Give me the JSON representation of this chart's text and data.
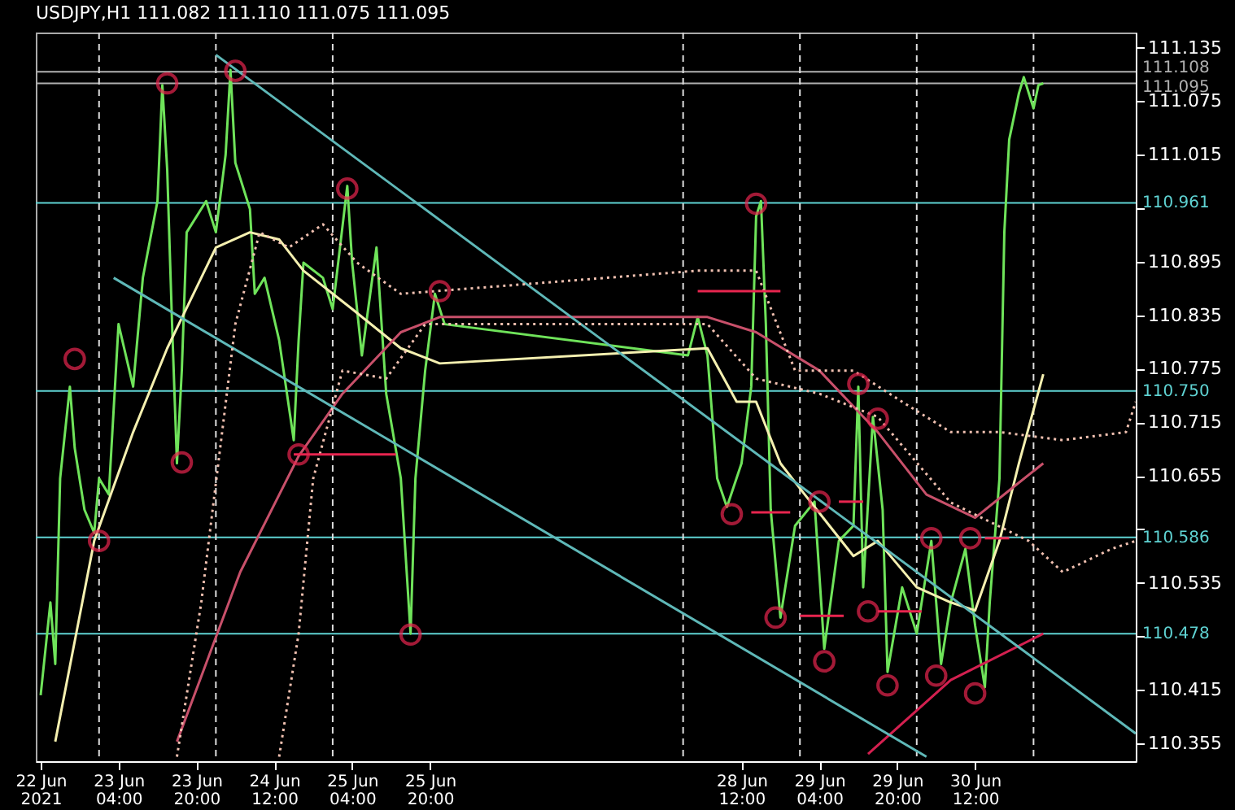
{
  "chart_data": {
    "type": "line",
    "title": "USDJPY,H1  111.082 111.110 111.075 111.095",
    "xlim": [
      "2021-06-22T11:00",
      "2021-07-01T21:00"
    ],
    "ylim": [
      110.335,
      111.152
    ],
    "xticks": [
      {
        "value": "2021-06-22T12:00",
        "label": "22 Jun 2021"
      },
      {
        "value": "2021-06-23T04:00",
        "label": "23 Jun 04:00"
      },
      {
        "value": "2021-06-23T20:00",
        "label": "23 Jun 20:00"
      },
      {
        "value": "2021-06-24T12:00",
        "label": "24 Jun 12:00"
      },
      {
        "value": "2021-06-25T04:00",
        "label": "25 Jun 04:00"
      },
      {
        "value": "2021-06-25T20:00",
        "label": "25 Jun 20:00"
      },
      {
        "value": "2021-06-28T12:00",
        "label": "28 Jun 12:00"
      },
      {
        "value": "2021-06-29T04:00",
        "label": "29 Jun 04:00"
      },
      {
        "value": "2021-06-29T20:00",
        "label": "29 Jun 20:00"
      },
      {
        "value": "2021-06-30T12:00",
        "label": "30 Jun 12:00"
      }
    ],
    "yticks": [
      111.135,
      111.075,
      111.015,
      {
        "value": 110.955,
        "label": null
      },
      110.895,
      110.835,
      110.775,
      110.715,
      110.655,
      {
        "value": 110.595,
        "label": null
      },
      110.535,
      {
        "value": 110.475,
        "label": null
      },
      110.415,
      110.355
    ],
    "marker": "none",
    "series": [
      {
        "color": "#6fe35a",
        "x": [
          "2021-06-22T12:00",
          "2021-06-22T14:00",
          "2021-06-22T15:00",
          "2021-06-22T16:00",
          "2021-06-22T18:00",
          "2021-06-22T19:00",
          "2021-06-22T21:00",
          "2021-06-22T23:00",
          "2021-06-23T00:00",
          "2021-06-23T02:00",
          "2021-06-23T04:00",
          "2021-06-23T07:00",
          "2021-06-23T09:00",
          "2021-06-23T12:00",
          "2021-06-23T13:00",
          "2021-06-23T14:00",
          "2021-06-23T15:00",
          "2021-06-23T16:00",
          "2021-06-23T17:00",
          "2021-06-23T18:00",
          "2021-06-23T22:00",
          "2021-06-24T00:00",
          "2021-06-24T02:00",
          "2021-06-24T03:00",
          "2021-06-24T04:00",
          "2021-06-24T07:00",
          "2021-06-24T08:00",
          "2021-06-24T10:00",
          "2021-06-24T13:00",
          "2021-06-24T16:00",
          "2021-06-24T17:00",
          "2021-06-24T18:00",
          "2021-06-24T22:00",
          "2021-06-25T00:00",
          "2021-06-25T03:00",
          "2021-06-25T04:00",
          "2021-06-25T06:00",
          "2021-06-25T09:00",
          "2021-06-25T11:00",
          "2021-06-25T14:00",
          "2021-06-25T16:00",
          "2021-06-25T17:00",
          "2021-06-25T19:00",
          "2021-06-25T21:00",
          "2021-06-25T23:00",
          "2021-06-28T01:00",
          "2021-06-28T03:00",
          "2021-06-28T05:00",
          "2021-06-28T07:00",
          "2021-06-28T09:00",
          "2021-06-28T12:00",
          "2021-06-28T14:00",
          "2021-06-28T15:00",
          "2021-06-28T16:00",
          "2021-06-28T17:00",
          "2021-06-28T18:00",
          "2021-06-28T20:00",
          "2021-06-28T23:00",
          "2021-06-29T03:00",
          "2021-06-29T05:00",
          "2021-06-29T08:00",
          "2021-06-29T11:00",
          "2021-06-29T12:00",
          "2021-06-29T13:00",
          "2021-06-29T15:00",
          "2021-06-29T17:00",
          "2021-06-29T18:00",
          "2021-06-29T21:00",
          "2021-06-30T00:00",
          "2021-06-30T03:00",
          "2021-06-30T05:00",
          "2021-06-30T07:00",
          "2021-06-30T10:00",
          "2021-06-30T12:00",
          "2021-06-30T14:00",
          "2021-06-30T15:00",
          "2021-06-30T17:00",
          "2021-06-30T18:00",
          "2021-06-30T19:00",
          "2021-06-30T21:00",
          "2021-06-30T22:00",
          "2021-07-01T00:00",
          "2021-07-01T01:00",
          "2021-07-01T02:00"
        ],
        "values": [
          110.409,
          110.513,
          110.444,
          110.652,
          110.755,
          110.686,
          110.617,
          110.591,
          110.652,
          110.634,
          110.825,
          110.755,
          110.877,
          110.963,
          111.093,
          110.998,
          110.825,
          110.669,
          110.773,
          110.928,
          110.963,
          110.928,
          111.015,
          111.11,
          111.006,
          110.954,
          110.859,
          110.877,
          110.807,
          110.695,
          110.807,
          110.894,
          110.877,
          110.842,
          110.98,
          110.894,
          110.79,
          110.911,
          110.747,
          110.652,
          110.478,
          110.652,
          110.773,
          110.859,
          110.825,
          110.79,
          110.833,
          110.79,
          110.652,
          110.62,
          110.669,
          110.755,
          110.946,
          110.963,
          110.825,
          110.617,
          110.496,
          110.599,
          110.626,
          110.461,
          110.582,
          110.599,
          110.755,
          110.53,
          110.721,
          110.617,
          110.435,
          110.53,
          110.478,
          110.582,
          110.444,
          110.513,
          110.573,
          110.487,
          110.418,
          110.513,
          110.652,
          110.928,
          111.032,
          111.084,
          111.102,
          111.067,
          111.093,
          111.095
        ]
      },
      {
        "color": "#f5f0b0",
        "x": [
          "2021-06-22T15:00",
          "2021-06-22T23:00",
          "2021-06-23T07:00",
          "2021-06-23T14:00",
          "2021-06-24T00:00",
          "2021-06-24T07:00",
          "2021-06-24T13:00",
          "2021-06-24T18:00",
          "2021-06-25T04:00",
          "2021-06-25T14:00",
          "2021-06-25T22:00",
          "2021-06-28T05:00",
          "2021-06-28T11:00",
          "2021-06-28T15:00",
          "2021-06-28T20:00",
          "2021-06-29T01:00",
          "2021-06-29T11:00",
          "2021-06-29T16:00",
          "2021-06-30T00:00",
          "2021-06-30T07:00",
          "2021-06-30T12:00",
          "2021-06-30T17:00",
          "2021-06-30T21:00",
          "2021-07-01T02:00"
        ],
        "values": [
          110.357,
          110.582,
          110.704,
          110.798,
          110.911,
          110.928,
          110.92,
          110.885,
          110.842,
          110.798,
          110.781,
          110.798,
          110.738,
          110.738,
          110.669,
          110.634,
          110.565,
          110.582,
          110.53,
          110.513,
          110.504,
          110.582,
          110.669,
          110.769
        ]
      },
      {
        "color": "#c8506a",
        "x": [
          "2021-06-23T16:00",
          "2021-06-24T05:00",
          "2021-06-24T17:00",
          "2021-06-25T02:00",
          "2021-06-25T14:00",
          "2021-06-25T22:00",
          "2021-06-28T05:00",
          "2021-06-28T15:00",
          "2021-06-29T04:00",
          "2021-06-29T16:00",
          "2021-06-30T02:00",
          "2021-06-30T12:00",
          "2021-06-30T20:00",
          "2021-07-01T02:00"
        ],
        "values": [
          110.357,
          110.547,
          110.677,
          110.747,
          110.816,
          110.833,
          110.833,
          110.816,
          110.773,
          110.704,
          110.634,
          110.608,
          110.643,
          110.669
        ]
      },
      {
        "color": "#d42050",
        "x": [
          "2021-06-29T14:00",
          "2021-06-30T07:00",
          "2021-07-01T02:00"
        ],
        "values": [
          110.343,
          110.426,
          110.478
        ]
      },
      {
        "color": "#5fb8b8",
        "x": [
          "2021-06-24T00:00",
          "2021-07-01T21:00"
        ],
        "values": [
          111.127,
          110.366
        ]
      },
      {
        "color": "#5fb8b8",
        "x": [
          "2021-06-23T03:00",
          "2021-06-30T02:00"
        ],
        "values": [
          110.877,
          110.34
        ]
      },
      {
        "color": "#f0c0b0",
        "line_style": "dotted",
        "x": [
          "2021-06-23T16:00",
          "2021-06-23T21:00",
          "2021-06-24T04:00",
          "2021-06-24T09:00",
          "2021-06-24T15:00",
          "2021-06-24T22:00",
          "2021-06-25T05:00",
          "2021-06-25T14:00",
          "2021-06-28T03:00",
          "2021-06-28T15:00",
          "2021-06-28T23:00",
          "2021-06-29T11:00",
          "2021-06-29T21:00",
          "2021-06-30T07:00",
          "2021-06-30T17:00",
          "2021-07-01T06:00",
          "2021-07-01T19:00",
          "2021-07-01T21:00"
        ],
        "values": [
          110.34,
          110.513,
          110.825,
          110.928,
          110.911,
          110.937,
          110.894,
          110.859,
          110.885,
          110.885,
          110.773,
          110.773,
          110.738,
          110.704,
          110.704,
          110.695,
          110.704,
          110.738
        ]
      },
      {
        "color": "#f0c0b0",
        "line_style": "dotted",
        "x": [
          "2021-06-24T13:00",
          "2021-06-24T17:00",
          "2021-06-24T20:00",
          "2021-06-25T02:00",
          "2021-06-25T11:00",
          "2021-06-25T19:00",
          "2021-06-28T05:00",
          "2021-06-28T15:00",
          "2021-06-29T04:00",
          "2021-06-29T16:00",
          "2021-06-30T07:00",
          "2021-06-30T23:00",
          "2021-07-01T06:00",
          "2021-07-01T16:00",
          "2021-07-01T21:00"
        ],
        "values": [
          110.34,
          110.478,
          110.652,
          110.773,
          110.764,
          110.825,
          110.825,
          110.764,
          110.747,
          110.721,
          110.625,
          110.582,
          110.547,
          110.573,
          110.582
        ]
      },
      {
        "color": "#e8254f",
        "x": [
          "2021-06-24T16:00",
          "2021-06-25T13:00"
        ],
        "values": [
          110.679,
          110.679
        ]
      },
      {
        "color": "#e8254f",
        "x": [
          "2021-06-28T03:00",
          "2021-06-28T20:00"
        ],
        "values": [
          110.862,
          110.862
        ]
      },
      {
        "color": "#e8254f",
        "x": [
          "2021-06-28T14:00",
          "2021-06-28T22:00"
        ],
        "values": [
          110.614,
          110.614
        ]
      },
      {
        "color": "#e8254f",
        "x": [
          "2021-06-29T08:00",
          "2021-06-29T13:00"
        ],
        "values": [
          110.626,
          110.626
        ]
      },
      {
        "color": "#e8254f",
        "x": [
          "2021-06-29T00:00",
          "2021-06-29T09:00"
        ],
        "values": [
          110.498,
          110.498
        ]
      },
      {
        "color": "#e8254f",
        "x": [
          "2021-06-29T16:00",
          "2021-06-30T01:00"
        ],
        "values": [
          110.503,
          110.503
        ]
      },
      {
        "color": "#e8254f",
        "x": [
          "2021-06-30T14:00",
          "2021-06-30T19:00"
        ],
        "values": [
          110.585,
          110.585
        ]
      },
      {
        "type": "scatter",
        "marker": "circle",
        "color": "#e8254f",
        "x": [
          "2021-06-22T19:00",
          "2021-06-23T00:00",
          "2021-06-23T14:00",
          "2021-06-23T17:00",
          "2021-06-24T04:00",
          "2021-06-25T03:00",
          "2021-06-24T17:00",
          "2021-06-25T16:00",
          "2021-06-25T22:00",
          "2021-06-28T15:00",
          "2021-06-28T10:00",
          "2021-06-28T19:00",
          "2021-06-29T04:00",
          "2021-06-29T05:00",
          "2021-06-29T12:00",
          "2021-06-29T16:00",
          "2021-06-29T14:00",
          "2021-06-29T18:00",
          "2021-06-30T03:00",
          "2021-06-30T04:00",
          "2021-06-30T11:00",
          "2021-06-30T12:00"
        ],
        "values": [
          110.786,
          110.582,
          111.095,
          110.67,
          111.109,
          110.977,
          110.679,
          110.477,
          110.862,
          110.96,
          110.612,
          110.496,
          110.626,
          110.447,
          110.758,
          110.719,
          110.503,
          110.42,
          110.585,
          110.431,
          110.585,
          110.411
        ]
      }
    ],
    "ref_lines": [
      {
        "axis": "y",
        "value": 111.108,
        "label": "111.108",
        "color": "#b0b0b0"
      },
      {
        "axis": "y",
        "value": 111.095,
        "label": "111.095",
        "color": "#b0b0b0"
      },
      {
        "axis": "y",
        "value": 110.961,
        "label": "110.961",
        "color": "#5fd3d3"
      },
      {
        "axis": "y",
        "value": 110.75,
        "label": "110.750",
        "color": "#5fd3d3"
      },
      {
        "axis": "y",
        "value": 110.586,
        "label": "110.586",
        "color": "#5fd3d3"
      },
      {
        "axis": "y",
        "value": 110.478,
        "label": "110.478",
        "color": "#5fd3d3"
      },
      {
        "axis": "x",
        "value": "2021-06-23T00:00",
        "color": "#dddddd",
        "line_style": "dashed"
      },
      {
        "axis": "x",
        "value": "2021-06-24T00:00",
        "color": "#dddddd",
        "line_style": "dashed"
      },
      {
        "axis": "x",
        "value": "2021-06-25T00:00",
        "color": "#dddddd",
        "line_style": "dashed"
      },
      {
        "axis": "x",
        "value": "2021-06-28T00:00",
        "color": "#dddddd",
        "line_style": "dashed"
      },
      {
        "axis": "x",
        "value": "2021-06-29T00:00",
        "color": "#dddddd",
        "line_style": "dashed"
      },
      {
        "axis": "x",
        "value": "2021-06-30T00:00",
        "color": "#dddddd",
        "line_style": "dashed"
      },
      {
        "axis": "x",
        "value": "2021-07-01T00:00",
        "color": "#dddddd",
        "line_style": "dashed"
      }
    ]
  }
}
